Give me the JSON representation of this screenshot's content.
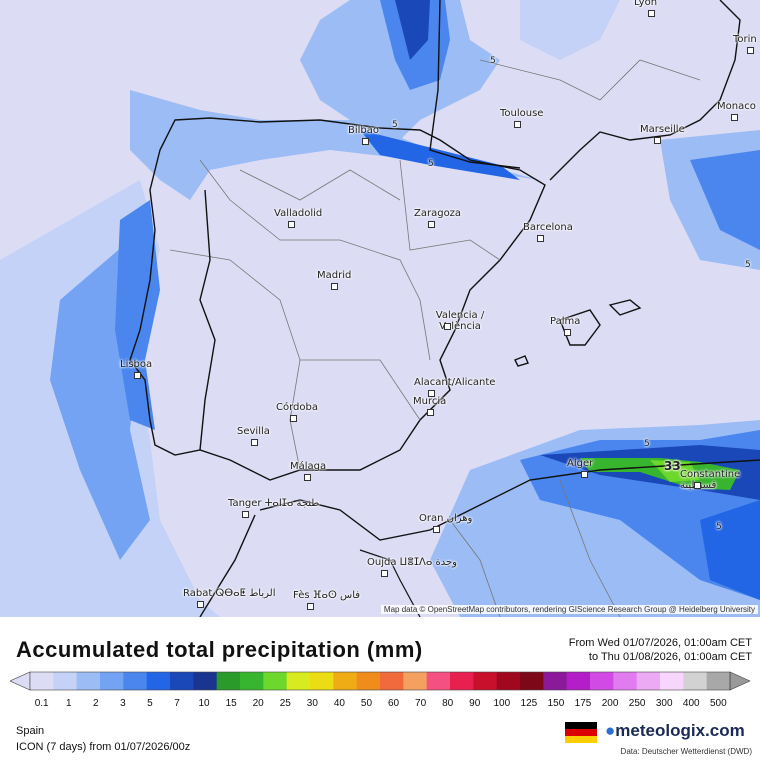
{
  "map": {
    "cities": [
      {
        "name": "Lyon"
      },
      {
        "name": "Torin"
      },
      {
        "name": "Monaco"
      },
      {
        "name": "Toulouse"
      },
      {
        "name": "Marseille"
      },
      {
        "name": "Bilbao"
      },
      {
        "name": "Valladolid"
      },
      {
        "name": "Zaragoza"
      },
      {
        "name": "Barcelona"
      },
      {
        "name": "Madrid"
      },
      {
        "name": "Valencia / València"
      },
      {
        "name": "Palma"
      },
      {
        "name": "Lisboa"
      },
      {
        "name": "Alacant/Alicante"
      },
      {
        "name": "Murcia"
      },
      {
        "name": "Córdoba"
      },
      {
        "name": "Sevilla"
      },
      {
        "name": "Málaga"
      },
      {
        "name": "Tanger ⵜⴰⵏⵊⴰ طنجة"
      },
      {
        "name": "Oran وهران"
      },
      {
        "name": "Alger"
      },
      {
        "name": "Constantine قسنطينة"
      },
      {
        "name": "Oujda ⵡⴻⵊⴷⴰ وجدة"
      },
      {
        "name": "Rabat ⵕⴱⴰⵟ الرباط"
      },
      {
        "name": "Fès ⴼⴰⵙ فاس"
      }
    ],
    "contour_labels": [
      "5",
      "5",
      "5",
      "5",
      "5",
      "5",
      "33"
    ],
    "attribution": "Map data © OpenStreetMap contributors, rendering GIScience Research Group @ Heidelberg University"
  },
  "legend": {
    "title": "Accumulated total precipitation (mm)",
    "period_from": "From Wed 01/07/2026, 01:00am CET",
    "period_to": "to Thu 01/08/2026, 01:00am CET",
    "ticks": [
      "0.1",
      "1",
      "2",
      "3",
      "5",
      "7",
      "10",
      "15",
      "20",
      "25",
      "30",
      "40",
      "50",
      "60",
      "70",
      "80",
      "90",
      "100",
      "125",
      "150",
      "175",
      "200",
      "250",
      "300",
      "400",
      "500"
    ],
    "colors": [
      "#dcdcf4",
      "#c3d2f6",
      "#9bbcf5",
      "#74a3f3",
      "#4a86ee",
      "#2266e6",
      "#1a48b8",
      "#1a3590",
      "#2a9a2a",
      "#38b52e",
      "#6cd82c",
      "#d8ea20",
      "#ecdc14",
      "#f0ac14",
      "#f08c1c",
      "#f06a3c",
      "#f4a060",
      "#f45080",
      "#e82050",
      "#c8102c",
      "#a00820",
      "#7c0818",
      "#8a1a9a",
      "#b41ec8",
      "#d24ae6",
      "#e07cf0",
      "#ecaaf4",
      "#f6d6fa",
      "#d2d2d2",
      "#a8a8a8"
    ]
  },
  "footer": {
    "region": "Spain",
    "model": "ICON (7 days)  from  01/07/2026/00z",
    "logo": "meteologix.com",
    "source": "Data: Deutscher Wetterdienst (DWD)"
  },
  "flag_colors": [
    "#000000",
    "#dd0000",
    "#ffce00"
  ]
}
